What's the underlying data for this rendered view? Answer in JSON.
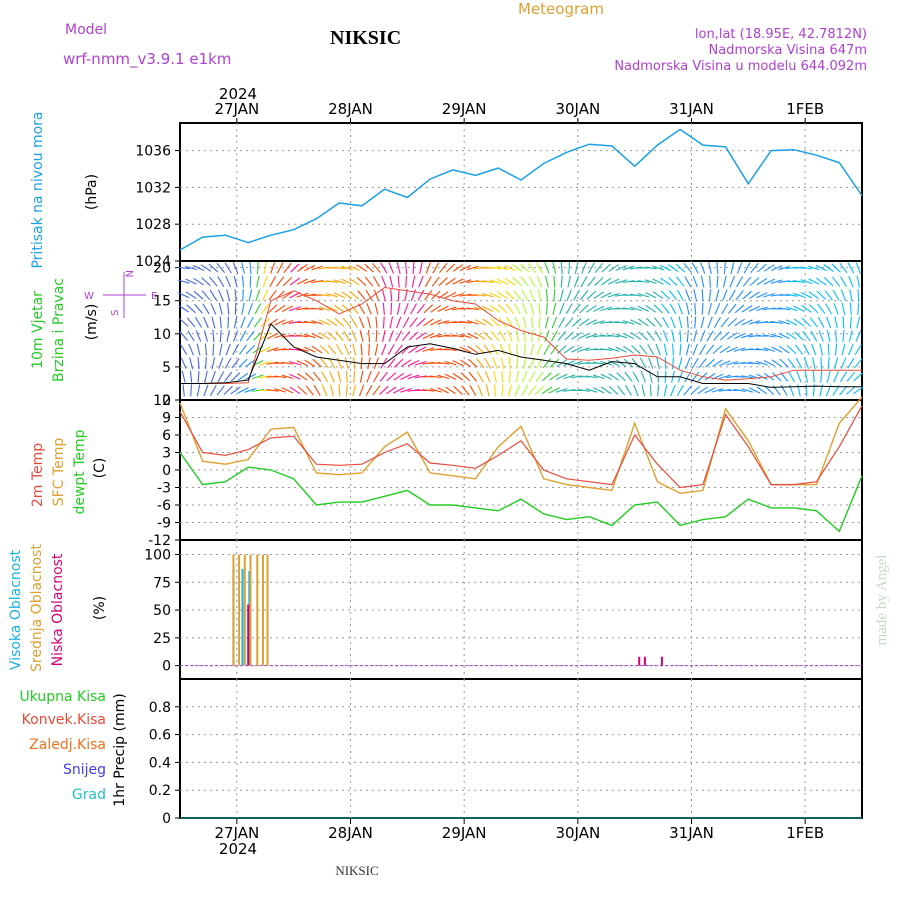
{
  "header": {
    "model_label": "Model",
    "model_name": "wrf-nmm_v3.9.1  e1km",
    "station": "NIKSIC",
    "meteogram": "Meteogram",
    "lonlat": "lon,lat (18.95E, 42.7812N)",
    "elevation": "Nadmorska Visina 647m",
    "model_elevation": "Nadmorska Visina u modelu 644.092m",
    "footer_station": "NIKSIC",
    "watermark": "made by Angel"
  },
  "colors": {
    "pressure": "#1aa0e6",
    "temp2m": "#e84a3a",
    "sfc_temp": "#e0a030",
    "dewpt": "#22cc22",
    "high_cloud": "#1ab0e6",
    "mid_cloud": "#e0a030",
    "low_cloud": "#d0007a",
    "ukupna": "#22cc22",
    "konvek": "#e84a3a",
    "zaledj": "#f07020",
    "snijeg": "#4040e0",
    "grad": "#22c0c0",
    "wind_label": "#22cc22",
    "header_purple": "#b040d0",
    "header_orange": "#e0a030"
  },
  "time_axis": {
    "top_labels": [
      "27JAN",
      "28JAN",
      "29JAN",
      "30JAN",
      "31JAN",
      "1FEB"
    ],
    "bottom_labels": [
      "27JAN",
      "28JAN",
      "29JAN",
      "30JAN",
      "31JAN",
      "1FEB"
    ],
    "year": "2024",
    "x_range_days": [
      -0.5,
      5.5
    ]
  },
  "panels": {
    "pressure": {
      "ylabel_main": "Pritisak na nivou mora",
      "ylabel_unit": "(hPa)",
      "ticks": [
        "1024",
        "1028",
        "1032",
        "1036"
      ]
    },
    "wind": {
      "ylabel_main": "10m Vjetar",
      "ylabel_sub": "Brzina i Pravac",
      "ylabel_unit": "(m/s)",
      "ticks": [
        "0",
        "5",
        "10",
        "15",
        "20"
      ],
      "compass_w": "W",
      "compass_e": "E",
      "compass_n": "N",
      "compass_s": "S"
    },
    "temp": {
      "ylabel_1": "2m Temp",
      "ylabel_2": "SFC Temp",
      "ylabel_3": "dewpt Temp",
      "ylabel_unit": "(C)",
      "ticks": [
        "-12",
        "-9",
        "-6",
        "-3",
        "0",
        "3",
        "6",
        "9",
        "12"
      ]
    },
    "cloud": {
      "ylabel_1": "Visoka Oblacnost",
      "ylabel_2": "Srednja Oblacnost",
      "ylabel_3": "Niska Oblacnost",
      "ylabel_unit": "(%)",
      "ticks": [
        "0",
        "25",
        "50",
        "75",
        "100"
      ]
    },
    "precip": {
      "labels": [
        "Ukupna Kisa",
        "Konvek.Kisa",
        "Zaledj.Kisa",
        "Snijeg",
        "Grad"
      ],
      "ylabel": "1hr Precip (mm)",
      "ticks": [
        "0",
        "0.2",
        "0.4",
        "0.6",
        "0.8"
      ]
    }
  },
  "chart_data": [
    {
      "type": "line",
      "title": "Pritisak na nivou mora",
      "ylabel": "(hPa)",
      "ylim": [
        1024,
        1039
      ],
      "x": [
        -0.5,
        -0.3,
        -0.1,
        0.1,
        0.3,
        0.5,
        0.7,
        0.9,
        1.1,
        1.3,
        1.5,
        1.7,
        1.9,
        2.1,
        2.3,
        2.5,
        2.7,
        2.9,
        3.1,
        3.3,
        3.5,
        3.7,
        3.9,
        4.1,
        4.3,
        4.5,
        4.7,
        4.9,
        5.1,
        5.3,
        5.5
      ],
      "series": [
        {
          "name": "Pritisak na nivou mora",
          "values": [
            1025.2,
            1026.6,
            1026.8,
            1026.0,
            1026.8,
            1027.4,
            1028.6,
            1030.3,
            1030.0,
            1031.8,
            1030.9,
            1032.9,
            1033.9,
            1033.3,
            1034.1,
            1032.8,
            1034.6,
            1035.8,
            1036.7,
            1036.5,
            1034.3,
            1036.6,
            1038.3,
            1036.6,
            1036.4,
            1032.4,
            1036.0,
            1036.1,
            1035.5,
            1034.7,
            1031.1
          ]
        }
      ]
    },
    {
      "type": "line",
      "title": "10m Vjetar Brzina i Pravac",
      "ylabel": "(m/s)",
      "ylim": [
        0,
        21
      ],
      "x": [
        -0.5,
        -0.3,
        -0.1,
        0.1,
        0.3,
        0.5,
        0.7,
        0.9,
        1.1,
        1.3,
        1.5,
        1.7,
        1.9,
        2.1,
        2.3,
        2.5,
        2.7,
        2.9,
        3.1,
        3.3,
        3.5,
        3.7,
        3.9,
        4.1,
        4.3,
        4.5,
        4.7,
        4.9,
        5.1,
        5.3,
        5.5
      ],
      "series": [
        {
          "values": [
            2.5,
            2.5,
            2.6,
            3.0,
            11.5,
            8.0,
            6.5,
            6.0,
            5.5,
            5.5,
            8.0,
            8.5,
            7.8,
            6.9,
            7.5,
            6.5,
            6.0,
            5.5,
            4.5,
            5.8,
            5.5,
            3.5,
            3.5,
            2.5,
            2.5,
            2.5,
            1.9,
            2.0,
            2.1,
            2.0,
            2.0
          ]
        },
        {
          "values": [
            2.5,
            2.5,
            2.5,
            2.6,
            15.0,
            16.5,
            15.0,
            13.0,
            14.5,
            17.0,
            16.5,
            16.0,
            15.0,
            14.5,
            12.0,
            10.5,
            9.5,
            6.2,
            6.0,
            6.3,
            6.8,
            6.5,
            4.5,
            3.5,
            3.0,
            3.2,
            3.5,
            4.5,
            4.5,
            4.5,
            4.5
          ]
        }
      ]
    },
    {
      "type": "line",
      "title": "2m Temp / SFC Temp / dewpt Temp",
      "ylabel": "(C)",
      "ylim": [
        -12,
        12
      ],
      "x": [
        -0.5,
        -0.3,
        -0.1,
        0.1,
        0.3,
        0.5,
        0.7,
        0.9,
        1.1,
        1.3,
        1.5,
        1.7,
        1.9,
        2.1,
        2.3,
        2.5,
        2.7,
        2.9,
        3.1,
        3.3,
        3.5,
        3.7,
        3.9,
        4.1,
        4.3,
        4.5,
        4.7,
        4.9,
        5.1,
        5.3,
        5.5
      ],
      "series": [
        {
          "name": "2m Temp",
          "values": [
            10.0,
            3.0,
            2.5,
            3.5,
            5.5,
            5.8,
            1.0,
            0.8,
            1.0,
            3.0,
            4.5,
            1.2,
            0.8,
            0.3,
            2.5,
            5.0,
            0.0,
            -1.5,
            -2.0,
            -2.5,
            6.0,
            1.0,
            -3.0,
            -2.5,
            9.5,
            4.0,
            -2.5,
            -2.5,
            -2.0,
            4.0,
            11.0
          ]
        },
        {
          "name": "SFC Temp",
          "values": [
            11.5,
            1.5,
            1.0,
            1.8,
            7.0,
            7.3,
            -0.5,
            -0.8,
            -0.5,
            4.0,
            6.5,
            -0.5,
            -1.0,
            -1.5,
            4.0,
            7.5,
            -1.5,
            -2.5,
            -3.0,
            -3.5,
            8.0,
            -2.0,
            -4.0,
            -3.5,
            10.5,
            5.0,
            -2.5,
            -2.5,
            -2.5,
            8.0,
            12.5
          ]
        },
        {
          "name": "dewpt Temp",
          "values": [
            3.0,
            -2.5,
            -2.0,
            0.5,
            0.0,
            -1.5,
            -6.0,
            -5.5,
            -5.5,
            -4.5,
            -3.5,
            -6.0,
            -6.0,
            -6.5,
            -7.0,
            -5.0,
            -7.5,
            -8.5,
            -8.0,
            -9.5,
            -6.0,
            -5.5,
            -9.5,
            -8.5,
            -8.0,
            -5.0,
            -6.5,
            -6.5,
            -7.0,
            -10.5,
            -1.0
          ]
        }
      ]
    },
    {
      "type": "bar",
      "title": "Visoka / Srednja / Niska Oblacnost",
      "ylabel": "(%)",
      "ylim": [
        0,
        100
      ],
      "series": [
        {
          "name": "Visoka Oblacnost",
          "x": [
            -0.03,
            0.05,
            0.11
          ],
          "values": [
            87,
            87,
            85
          ]
        },
        {
          "name": "Srednja Oblacnost",
          "x": [
            -0.03,
            0.02,
            0.07,
            0.12,
            0.18,
            0.23,
            0.27
          ],
          "values": [
            100,
            100,
            100,
            100,
            100,
            100,
            100
          ]
        },
        {
          "name": "Niska Oblacnost",
          "x": [
            0.1,
            3.54,
            3.59,
            3.74
          ],
          "values": [
            55,
            8,
            8,
            8
          ]
        }
      ]
    },
    {
      "type": "line",
      "title": "1hr Precip",
      "ylabel": "(mm)",
      "ylim": [
        0,
        1
      ],
      "x": [
        -0.5,
        5.5
      ],
      "series": [
        {
          "name": "Ukupna Kisa",
          "values": [
            0,
            0
          ]
        },
        {
          "name": "Konvek.Kisa",
          "values": [
            0,
            0
          ]
        },
        {
          "name": "Zaledj.Kisa",
          "values": [
            0,
            0
          ]
        },
        {
          "name": "Snijeg",
          "values": [
            0,
            0
          ]
        },
        {
          "name": "Grad",
          "values": [
            0,
            0
          ]
        }
      ]
    }
  ]
}
